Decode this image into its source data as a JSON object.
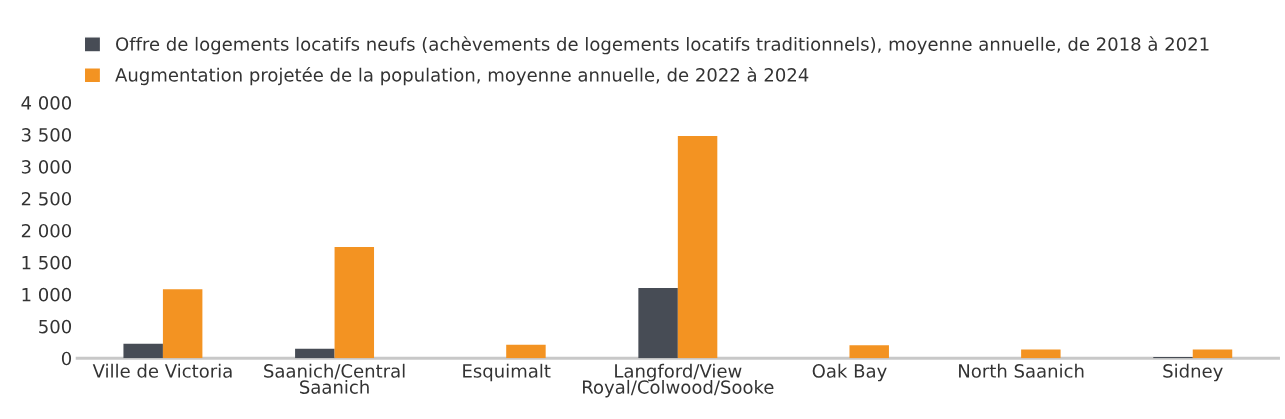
{
  "chart_data": {
    "type": "bar",
    "categories": [
      "Ville de Victoria",
      "Saanich/Central\nSaanich",
      "Esquimalt",
      "Langford/View\nRoyal/Colwood/Sooke",
      "Oak Bay",
      "North Saanich",
      "Sidney"
    ],
    "series": [
      {
        "name": "Offre de logements locatifs neufs (achèvements de logements locatifs traditionnels), moyenne annuelle, de 2018 à 2021",
        "color": "#474c55",
        "values": [
          225,
          150,
          0,
          1100,
          0,
          0,
          20
        ]
      },
      {
        "name": "Augmentation projetée de la population, moyenne annuelle, de 2022 à 2024",
        "color": "#f39322",
        "values": [
          1080,
          1740,
          210,
          3480,
          205,
          135,
          135
        ]
      }
    ],
    "ylim": [
      0,
      4000
    ],
    "yticks": [
      {
        "value": 0,
        "label": "0"
      },
      {
        "value": 500,
        "label": "500"
      },
      {
        "value": 1000,
        "label": "1 000"
      },
      {
        "value": 1500,
        "label": "1 500"
      },
      {
        "value": 2000,
        "label": "2 000"
      },
      {
        "value": 2500,
        "label": "2 500"
      },
      {
        "value": 3000,
        "label": "3 000"
      },
      {
        "value": 3500,
        "label": "3 500"
      },
      {
        "value": 4000,
        "label": "4 000"
      }
    ],
    "legend": "top left",
    "grid": false
  }
}
